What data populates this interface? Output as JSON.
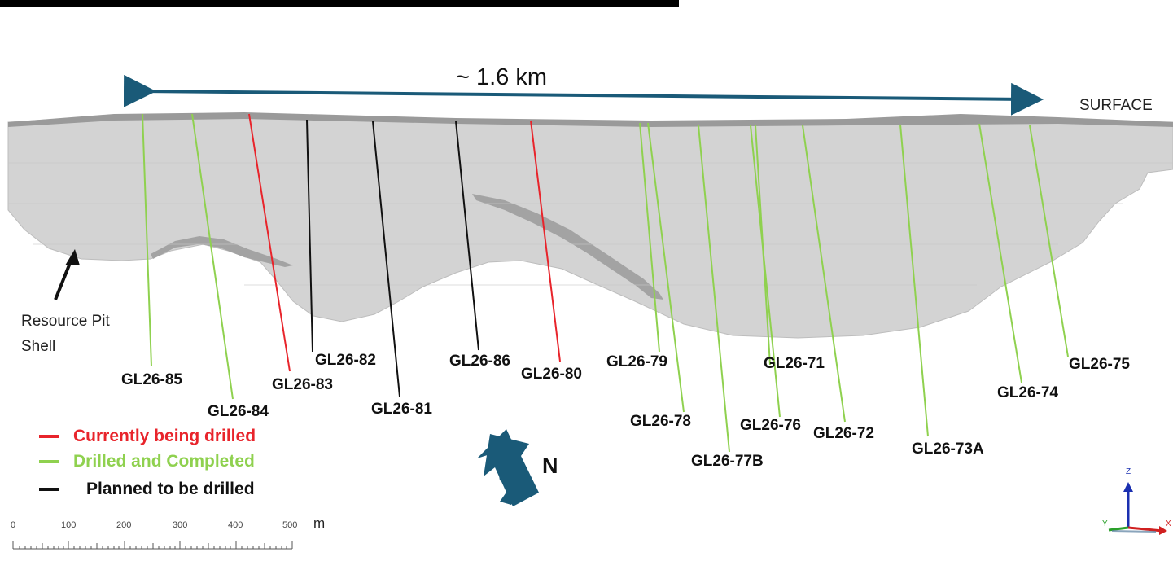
{
  "span_label": "~ 1.6 km",
  "surface_label": "SURFACE",
  "pit_shell_label": [
    "Resource Pit",
    "Shell"
  ],
  "north_label": "N",
  "colors": {
    "current": "#e8242b",
    "completed": "#8fd14f",
    "planned": "#111111",
    "shell": "#d3d3d3",
    "shell_dark": "#a6a6a6",
    "arrow": "#1a5a78"
  },
  "legend": [
    {
      "label": "Currently being drilled",
      "status": "current"
    },
    {
      "label": "Drilled and Completed",
      "status": "completed"
    },
    {
      "label": "Planned to be drilled",
      "status": "planned"
    }
  ],
  "holes": [
    {
      "name": "GL26-85",
      "status": "completed"
    },
    {
      "name": "GL26-84",
      "status": "completed"
    },
    {
      "name": "GL26-83",
      "status": "current"
    },
    {
      "name": "GL26-82",
      "status": "planned"
    },
    {
      "name": "GL26-81",
      "status": "planned"
    },
    {
      "name": "GL26-86",
      "status": "planned"
    },
    {
      "name": "GL26-80",
      "status": "current"
    },
    {
      "name": "GL26-79",
      "status": "completed"
    },
    {
      "name": "GL26-78",
      "status": "completed"
    },
    {
      "name": "GL26-77B",
      "status": "completed"
    },
    {
      "name": "GL26-76",
      "status": "completed"
    },
    {
      "name": "GL26-71",
      "status": "completed"
    },
    {
      "name": "GL26-72",
      "status": "completed"
    },
    {
      "name": "GL26-73A",
      "status": "completed"
    },
    {
      "name": "GL26-74",
      "status": "completed"
    },
    {
      "name": "GL26-75",
      "status": "completed"
    }
  ],
  "scale_bar": {
    "ticks": [
      "0",
      "100",
      "200",
      "300",
      "400",
      "500"
    ],
    "unit": "m"
  },
  "axis_triad": {
    "z": "Z",
    "y": "Y",
    "x": "X"
  }
}
